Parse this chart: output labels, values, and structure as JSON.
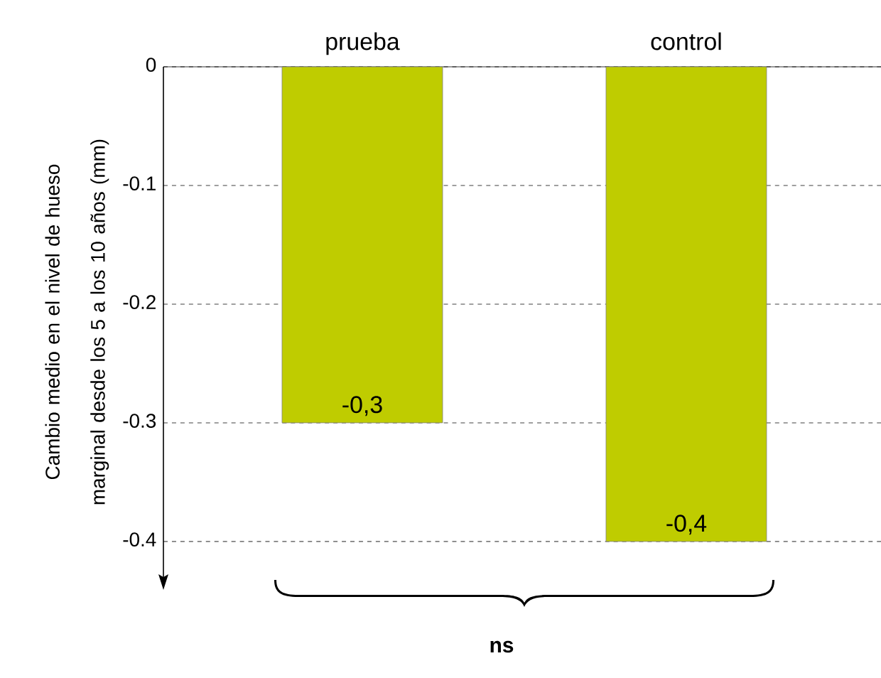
{
  "chart_data": {
    "type": "bar",
    "ylabel": "Cambio medio en el nivel de hueso marginal desde los 5 a los 10 años (mm)",
    "categories": [
      "prueba",
      "control"
    ],
    "values": [
      -0.3,
      -0.4
    ],
    "color": "#bfcc00",
    "value_labels": [
      "-0,3",
      "-0,4"
    ],
    "ylim": [
      -0.43,
      0
    ],
    "yticks": [
      0,
      -0.1,
      -0.2,
      -0.3,
      -0.4
    ],
    "grid": "y",
    "annotations": [
      "ns"
    ]
  }
}
